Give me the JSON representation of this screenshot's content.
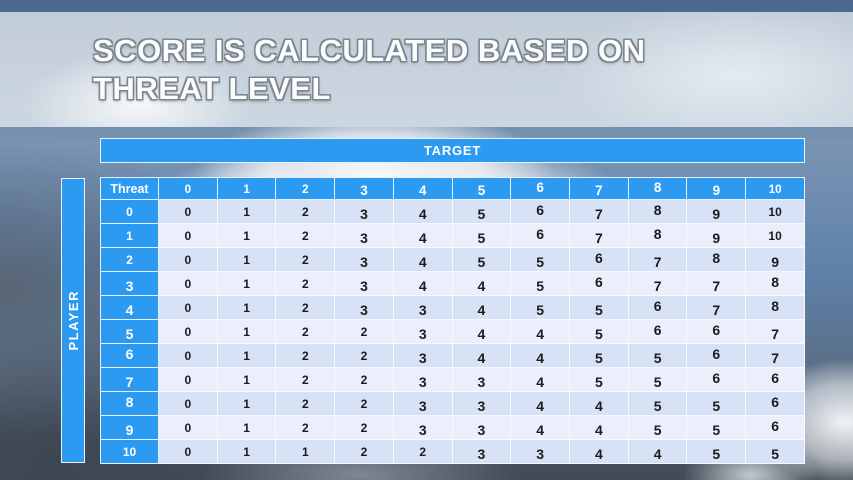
{
  "slide": {
    "title_line1": "SCORE IS CALCULATED BASED ON",
    "title_line2": "THREAT LEVEL"
  },
  "matrix": {
    "target_label": "TARGET",
    "player_label": "PLAYER",
    "corner_label": "Threat",
    "column_headers": [
      "0",
      "1",
      "2",
      "3",
      "4",
      "5",
      "6",
      "7",
      "8",
      "9",
      "10"
    ],
    "row_headers": [
      "0",
      "1",
      "2",
      "3",
      "4",
      "5",
      "6",
      "7",
      "8",
      "9",
      "10"
    ],
    "rows": [
      [
        0,
        1,
        2,
        3,
        4,
        5,
        6,
        7,
        8,
        9,
        10
      ],
      [
        0,
        1,
        2,
        3,
        4,
        5,
        6,
        7,
        8,
        9,
        10
      ],
      [
        0,
        1,
        2,
        3,
        4,
        5,
        5,
        6,
        7,
        8,
        9
      ],
      [
        0,
        1,
        2,
        3,
        4,
        4,
        5,
        6,
        7,
        7,
        8
      ],
      [
        0,
        1,
        2,
        3,
        3,
        4,
        5,
        5,
        6,
        7,
        8
      ],
      [
        0,
        1,
        2,
        2,
        3,
        4,
        4,
        5,
        6,
        6,
        7
      ],
      [
        0,
        1,
        2,
        2,
        3,
        4,
        4,
        5,
        5,
        6,
        7
      ],
      [
        0,
        1,
        2,
        2,
        3,
        3,
        4,
        5,
        5,
        6,
        6
      ],
      [
        0,
        1,
        2,
        2,
        3,
        3,
        4,
        4,
        5,
        5,
        6
      ],
      [
        0,
        1,
        2,
        2,
        3,
        3,
        4,
        4,
        5,
        5,
        6
      ],
      [
        0,
        1,
        1,
        2,
        2,
        3,
        3,
        4,
        4,
        5,
        5
      ]
    ]
  },
  "colors": {
    "accent_blue": "#2D9AF1",
    "row_even": "#D8E2F7",
    "row_odd": "#EAEFFB",
    "title_text": "#FBFCFD",
    "band_background": "#C6D1DC",
    "sky_top": "#49678E"
  }
}
